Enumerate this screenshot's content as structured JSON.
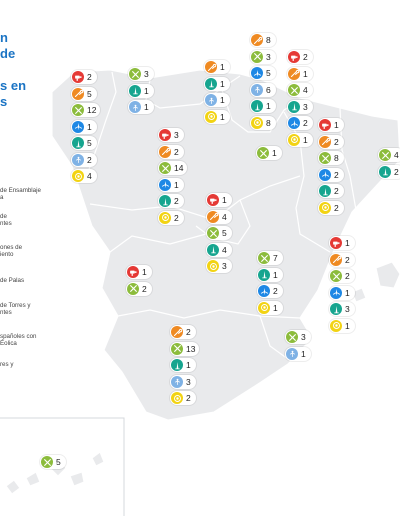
{
  "title": {
    "lines": [
      "n",
      "de",
      "",
      "s en",
      "s"
    ]
  },
  "legend": {
    "items": [
      {
        "label": "de Ensamblaje\na",
        "icon": "nacelle-assembly-icon"
      },
      {
        "label": "de\nntes",
        "icon": "components-icon"
      },
      {
        "label": "ones de\niento",
        "icon": "maintenance-icon"
      },
      {
        "label": "de Palas",
        "icon": "blades-icon"
      },
      {
        "label": "de Torres y\nntes",
        "icon": "towers-icon"
      },
      {
        "label": "spañoles con\nÉolica",
        "icon": "developers-icon"
      },
      {
        "label": "res y",
        "icon": "others-icon"
      }
    ]
  },
  "icon_colors": {
    "nacelle-assembly-icon": "#e53935",
    "components-icon": "#ef8a22",
    "maintenance-icon": "#8cbc3c",
    "blades-icon": "#1e88e5",
    "towers-icon": "#16a58f",
    "developers-icon": "#7fb2e5",
    "others-icon": "#f2d313"
  },
  "regions": [
    {
      "name": "galicia",
      "badges": [
        {
          "icon": "nacelle-assembly-icon",
          "value": "2"
        },
        {
          "icon": "components-icon",
          "value": "5"
        },
        {
          "icon": "maintenance-icon",
          "value": "12"
        },
        {
          "icon": "blades-icon",
          "value": "1"
        },
        {
          "icon": "towers-icon",
          "value": "5"
        },
        {
          "icon": "developers-icon",
          "value": "2"
        },
        {
          "icon": "others-icon",
          "value": "4"
        }
      ]
    },
    {
      "name": "asturias",
      "badges": [
        {
          "icon": "maintenance-icon",
          "value": "3"
        },
        {
          "icon": "towers-icon",
          "value": "1"
        },
        {
          "icon": "developers-icon",
          "value": "1"
        }
      ]
    },
    {
      "name": "cantabria",
      "badges": [
        {
          "icon": "components-icon",
          "value": "1"
        },
        {
          "icon": "towers-icon",
          "value": "1"
        },
        {
          "icon": "developers-icon",
          "value": "1"
        },
        {
          "icon": "others-icon",
          "value": "1"
        }
      ]
    },
    {
      "name": "pais-vasco",
      "badges": [
        {
          "icon": "components-icon",
          "value": "8"
        },
        {
          "icon": "maintenance-icon",
          "value": "3"
        },
        {
          "icon": "blades-icon",
          "value": "5"
        },
        {
          "icon": "developers-icon",
          "value": "6"
        },
        {
          "icon": "towers-icon",
          "value": "1"
        },
        {
          "icon": "others-icon",
          "value": "8"
        }
      ]
    },
    {
      "name": "navarra",
      "badges": [
        {
          "icon": "nacelle-assembly-icon",
          "value": "2"
        },
        {
          "icon": "components-icon",
          "value": "1"
        },
        {
          "icon": "maintenance-icon",
          "value": "4"
        },
        {
          "icon": "towers-icon",
          "value": "3"
        },
        {
          "icon": "blades-icon",
          "value": "2"
        },
        {
          "icon": "others-icon",
          "value": "1"
        }
      ]
    },
    {
      "name": "la-rioja",
      "badges": [
        {
          "icon": "maintenance-icon",
          "value": "1"
        }
      ]
    },
    {
      "name": "aragon",
      "badges": [
        {
          "icon": "nacelle-assembly-icon",
          "value": "1"
        },
        {
          "icon": "components-icon",
          "value": "2"
        },
        {
          "icon": "maintenance-icon",
          "value": "8"
        },
        {
          "icon": "blades-icon",
          "value": "2"
        },
        {
          "icon": "towers-icon",
          "value": "2"
        },
        {
          "icon": "others-icon",
          "value": "2"
        }
      ]
    },
    {
      "name": "cataluna",
      "badges": [
        {
          "icon": "maintenance-icon",
          "value": "4"
        },
        {
          "icon": "towers-icon",
          "value": "2"
        }
      ]
    },
    {
      "name": "castilla-y-leon",
      "badges": [
        {
          "icon": "nacelle-assembly-icon",
          "value": "3"
        },
        {
          "icon": "components-icon",
          "value": "2"
        },
        {
          "icon": "maintenance-icon",
          "value": "14"
        },
        {
          "icon": "blades-icon",
          "value": "1"
        },
        {
          "icon": "towers-icon",
          "value": "2"
        },
        {
          "icon": "others-icon",
          "value": "2"
        }
      ]
    },
    {
      "name": "madrid",
      "badges": [
        {
          "icon": "nacelle-assembly-icon",
          "value": "1"
        },
        {
          "icon": "components-icon",
          "value": "4"
        },
        {
          "icon": "maintenance-icon",
          "value": "5"
        },
        {
          "icon": "towers-icon",
          "value": "4"
        },
        {
          "icon": "others-icon",
          "value": "3"
        }
      ]
    },
    {
      "name": "extremadura",
      "badges": [
        {
          "icon": "nacelle-assembly-icon",
          "value": "1"
        },
        {
          "icon": "maintenance-icon",
          "value": "2"
        }
      ]
    },
    {
      "name": "castilla-la-mancha",
      "badges": [
        {
          "icon": "maintenance-icon",
          "value": "7"
        },
        {
          "icon": "towers-icon",
          "value": "1"
        },
        {
          "icon": "blades-icon",
          "value": "2"
        },
        {
          "icon": "others-icon",
          "value": "1"
        }
      ]
    },
    {
      "name": "valencia",
      "badges": [
        {
          "icon": "nacelle-assembly-icon",
          "value": "1"
        },
        {
          "icon": "components-icon",
          "value": "2"
        },
        {
          "icon": "maintenance-icon",
          "value": "2"
        },
        {
          "icon": "blades-icon",
          "value": "1"
        },
        {
          "icon": "towers-icon",
          "value": "3"
        },
        {
          "icon": "others-icon",
          "value": "1"
        }
      ]
    },
    {
      "name": "murcia",
      "badges": [
        {
          "icon": "maintenance-icon",
          "value": "3"
        },
        {
          "icon": "developers-icon",
          "value": "1"
        }
      ]
    },
    {
      "name": "andalucia",
      "badges": [
        {
          "icon": "components-icon",
          "value": "2"
        },
        {
          "icon": "maintenance-icon",
          "value": "13"
        },
        {
          "icon": "towers-icon",
          "value": "1"
        },
        {
          "icon": "developers-icon",
          "value": "3"
        },
        {
          "icon": "others-icon",
          "value": "2"
        }
      ]
    },
    {
      "name": "canarias",
      "badges": [
        {
          "icon": "maintenance-icon",
          "value": "5"
        }
      ]
    }
  ]
}
